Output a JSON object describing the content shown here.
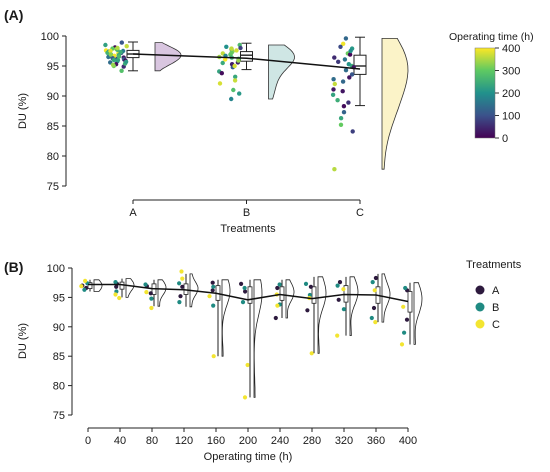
{
  "panel_a": {
    "label": "(A)",
    "colorbar_title": "Operating time (h)",
    "colorbar_ticks": [
      "400",
      "300",
      "200",
      "100",
      "0"
    ],
    "colormap": [
      "#440154",
      "#3b528b",
      "#21918c",
      "#5ec962",
      "#fde725"
    ]
  },
  "panel_b": {
    "label": "(B)",
    "legend_title": "Treatments",
    "legend": [
      {
        "label": "A",
        "color": "#2d1a3e"
      },
      {
        "label": "B",
        "color": "#1f8a82"
      },
      {
        "label": "C",
        "color": "#f3e531"
      }
    ]
  },
  "chart_data": [
    {
      "type": "scatter",
      "subtype": "raincloud",
      "xlabel": "Treatments",
      "ylabel": "DU (%)",
      "categories": [
        "A",
        "B",
        "C"
      ],
      "ylim": [
        75,
        100
      ],
      "yticks": [
        75,
        80,
        85,
        90,
        95,
        100
      ],
      "color_by": "Operating time (h)",
      "color_range": [
        0,
        400
      ],
      "mean_line": [
        97.0,
        96.3,
        94.5
      ],
      "boxes": [
        {
          "category": "A",
          "min": 94.2,
          "q1": 96.4,
          "median": 97.0,
          "q3": 97.6,
          "max": 99.0
        },
        {
          "category": "B",
          "min": 94.4,
          "q1": 95.8,
          "median": 96.8,
          "q3": 97.4,
          "max": 98.8
        },
        {
          "category": "C",
          "min": 88.4,
          "q1": 93.6,
          "median": 95.0,
          "q3": 96.8,
          "max": 99.8
        }
      ],
      "points": [
        {
          "category": "A",
          "values": [
            96.6,
            97.2,
            95.8,
            98.1,
            96.9,
            97.5,
            94.2,
            95.3,
            96.2,
            97.8,
            98.5,
            96.0,
            97.1,
            95.0,
            96.4,
            97.9,
            96.7,
            95.6,
            98.3,
            97.3,
            96.1,
            94.9,
            97.6,
            96.8,
            95.9,
            97.0,
            98.9,
            96.5,
            95.4,
            97.4,
            96.3,
            97.7,
            95.2,
            96.0,
            98.0,
            97.2,
            96.6,
            95.7,
            97.5,
            96.9
          ]
        },
        {
          "category": "B",
          "values": [
            97.8,
            96.5,
            98.2,
            95.6,
            97.1,
            96.0,
            94.8,
            93.2,
            92.1,
            91.0,
            90.4,
            89.5,
            96.9,
            97.4,
            95.3,
            98.5,
            96.2,
            94.1,
            97.6,
            95.9,
            96.7,
            93.8,
            98.0,
            97.2,
            95.0,
            96.4,
            92.6,
            97.9,
            96.1,
            95.5
          ]
        },
        {
          "category": "C",
          "values": [
            99.6,
            98.7,
            97.9,
            97.1,
            96.4,
            95.7,
            95.0,
            94.3,
            93.6,
            92.8,
            92.0,
            91.1,
            90.2,
            89.3,
            88.3,
            87.3,
            86.3,
            85.2,
            84.1,
            77.8,
            96.9,
            95.3,
            94.8,
            93.1,
            97.5,
            96.1,
            98.2,
            92.4,
            90.8,
            88.9
          ]
        }
      ]
    },
    {
      "type": "scatter",
      "subtype": "raincloud",
      "xlabel": "Operating time (h)",
      "ylabel": "DU (%)",
      "x": [
        0,
        40,
        80,
        120,
        160,
        200,
        240,
        280,
        320,
        360,
        400
      ],
      "xticks": [
        0,
        40,
        80,
        120,
        160,
        200,
        240,
        280,
        320,
        360,
        400
      ],
      "ylim": [
        75,
        100
      ],
      "yticks": [
        75,
        80,
        85,
        90,
        95,
        100
      ],
      "mean_line": [
        97.2,
        97.2,
        96.5,
        96.3,
        95.7,
        94.6,
        95.5,
        94.8,
        95.5,
        95.4,
        94.3
      ],
      "boxes": [
        {
          "x": 0,
          "min": 96.0,
          "q1": 96.5,
          "median": 97.0,
          "q3": 97.5,
          "max": 98.0
        },
        {
          "x": 40,
          "min": 95.0,
          "q1": 96.4,
          "median": 97.0,
          "q3": 97.6,
          "max": 98.2
        },
        {
          "x": 80,
          "min": 93.5,
          "q1": 95.5,
          "median": 96.5,
          "q3": 97.3,
          "max": 98.0
        },
        {
          "x": 120,
          "min": 93.4,
          "q1": 95.5,
          "median": 96.5,
          "q3": 97.3,
          "max": 99.0
        },
        {
          "x": 160,
          "min": 85.0,
          "q1": 94.5,
          "median": 96.0,
          "q3": 97.0,
          "max": 98.0
        },
        {
          "x": 200,
          "min": 78.0,
          "q1": 94.0,
          "median": 95.5,
          "q3": 96.8,
          "max": 98.0
        },
        {
          "x": 240,
          "min": 91.5,
          "q1": 94.5,
          "median": 95.8,
          "q3": 96.8,
          "max": 98.0
        },
        {
          "x": 280,
          "min": 85.5,
          "q1": 94.0,
          "median": 95.5,
          "q3": 96.8,
          "max": 98.5
        },
        {
          "x": 320,
          "min": 88.5,
          "q1": 94.2,
          "median": 95.8,
          "q3": 97.0,
          "max": 98.5
        },
        {
          "x": 360,
          "min": 90.8,
          "q1": 94.0,
          "median": 95.5,
          "q3": 96.8,
          "max": 99.0
        },
        {
          "x": 400,
          "min": 87.0,
          "q1": 92.5,
          "median": 94.5,
          "q3": 96.0,
          "max": 97.5
        }
      ],
      "series": [
        {
          "name": "A",
          "color": "#2d1a3e",
          "points": [
            [
              0,
              97.0
            ],
            [
              0,
              96.6
            ],
            [
              40,
              97.3
            ],
            [
              40,
              96.8
            ],
            [
              80,
              96.9
            ],
            [
              80,
              95.7
            ],
            [
              120,
              96.8
            ],
            [
              120,
              95.2
            ],
            [
              160,
              97.5
            ],
            [
              160,
              96.2
            ],
            [
              200,
              97.3
            ],
            [
              200,
              96.0
            ],
            [
              240,
              96.6
            ],
            [
              240,
              91.5
            ],
            [
              280,
              96.8
            ],
            [
              280,
              92.8
            ],
            [
              320,
              97.6
            ],
            [
              320,
              94.6
            ],
            [
              360,
              98.3
            ],
            [
              360,
              93.2
            ],
            [
              400,
              96.2
            ],
            [
              400,
              91.2
            ]
          ]
        },
        {
          "name": "B",
          "color": "#1f8a82",
          "points": [
            [
              0,
              97.4
            ],
            [
              0,
              96.3
            ],
            [
              40,
              97.6
            ],
            [
              40,
              96.0
            ],
            [
              80,
              97.2
            ],
            [
              80,
              94.8
            ],
            [
              120,
              97.4
            ],
            [
              120,
              94.2
            ],
            [
              160,
              96.8
            ],
            [
              160,
              93.6
            ],
            [
              200,
              96.6
            ],
            [
              200,
              94.2
            ],
            [
              240,
              97.2
            ],
            [
              240,
              93.8
            ],
            [
              280,
              97.3
            ],
            [
              280,
              95.4
            ],
            [
              320,
              97.0
            ],
            [
              320,
              93.0
            ],
            [
              360,
              97.6
            ],
            [
              360,
              91.5
            ],
            [
              400,
              96.6
            ],
            [
              400,
              89.0
            ]
          ]
        },
        {
          "name": "C",
          "color": "#f3e531",
          "points": [
            [
              0,
              97.8
            ],
            [
              0,
              96.9
            ],
            [
              40,
              95.5
            ],
            [
              40,
              94.9
            ],
            [
              80,
              95.9
            ],
            [
              80,
              93.2
            ],
            [
              120,
              99.4
            ],
            [
              120,
              98.2
            ],
            [
              160,
              95.2
            ],
            [
              160,
              85.0
            ],
            [
              200,
              83.5
            ],
            [
              200,
              78.0
            ],
            [
              240,
              95.5
            ],
            [
              240,
              93.6
            ],
            [
              280,
              94.9
            ],
            [
              280,
              85.5
            ],
            [
              320,
              96.4
            ],
            [
              320,
              88.5
            ],
            [
              360,
              96.2
            ],
            [
              360,
              90.8
            ],
            [
              400,
              93.4
            ],
            [
              400,
              87.0
            ]
          ]
        }
      ]
    }
  ]
}
